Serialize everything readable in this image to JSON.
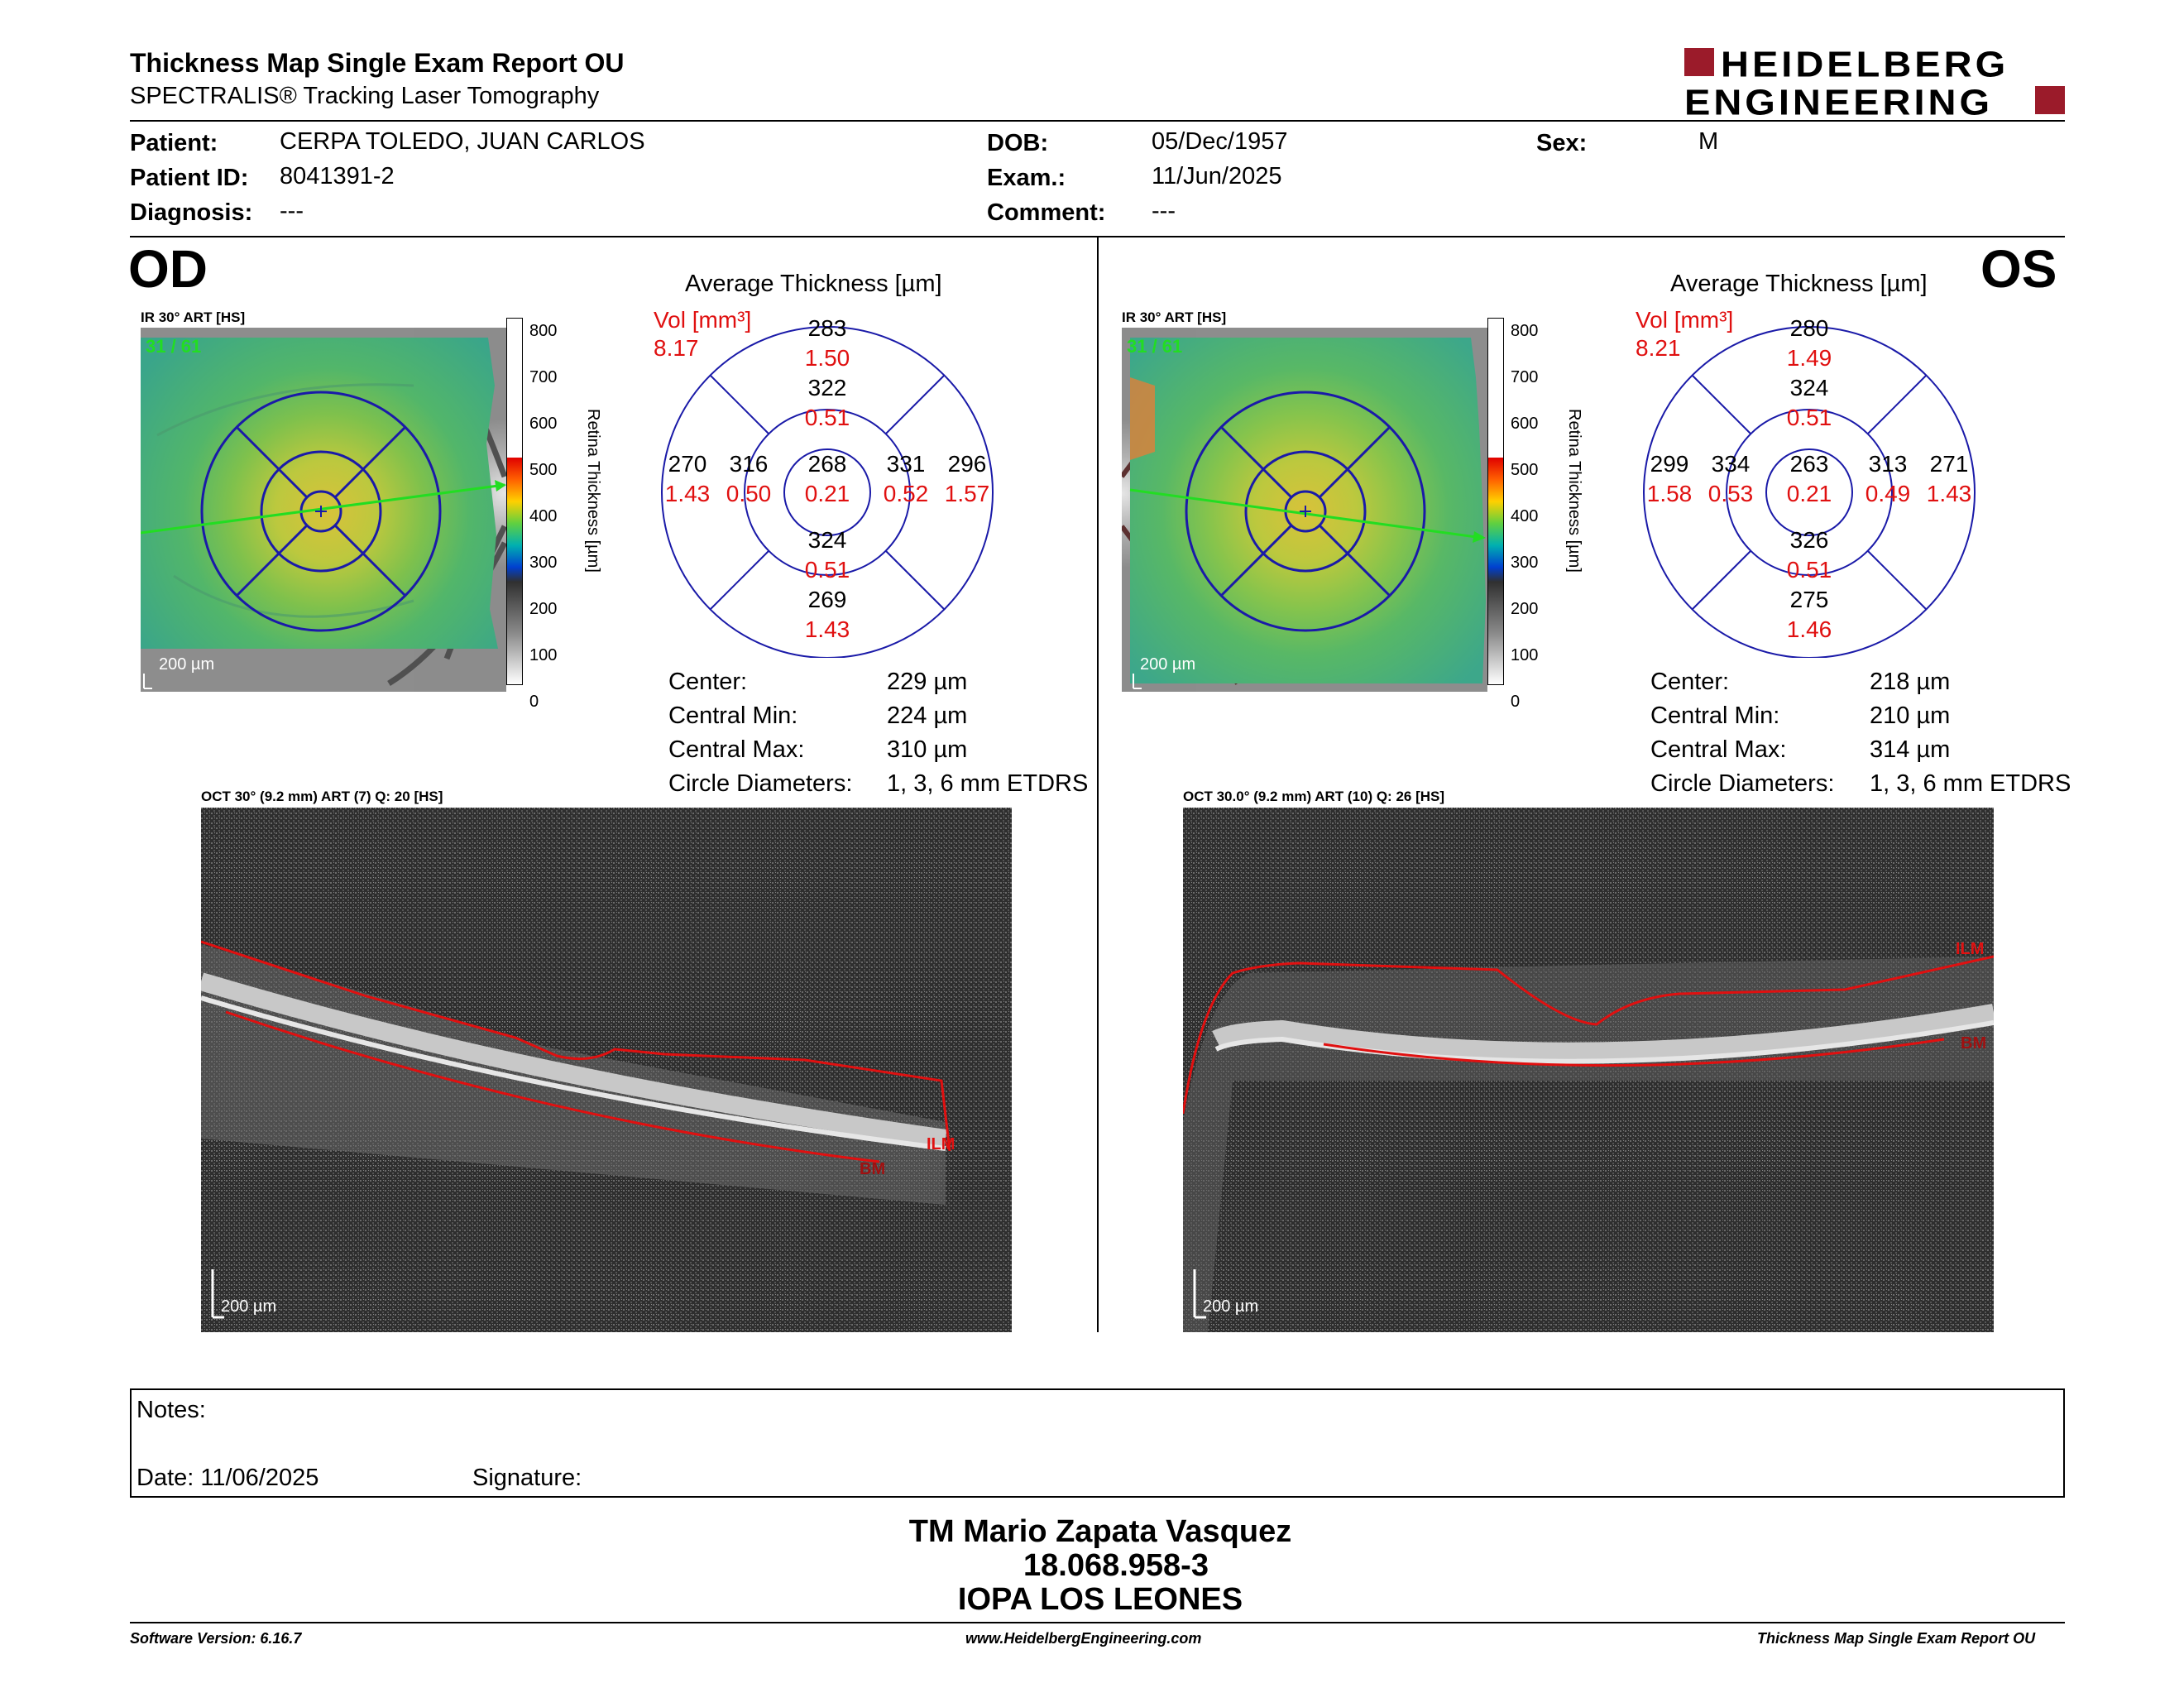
{
  "header": {
    "title": "Thickness Map Single Exam Report OU",
    "subtitle": "SPECTRALIS® Tracking Laser Tomography",
    "logo_line1": "HEIDELBERG",
    "logo_line2": "ENGINEERING",
    "brand_color": "#9b1b2a"
  },
  "patient": {
    "patient_label": "Patient:",
    "patient_value": "CERPA TOLEDO, JUAN CARLOS",
    "id_label": "Patient ID:",
    "id_value": "8041391-2",
    "diagnosis_label": "Diagnosis:",
    "diagnosis_value": "---",
    "dob_label": "DOB:",
    "dob_value": "05/Dec/1957",
    "exam_label": "Exam.:",
    "exam_value": "11/Jun/2025",
    "comment_label": "Comment:",
    "comment_value": "---",
    "sex_label": "Sex:",
    "sex_value": "M"
  },
  "od": {
    "eye_label": "OD",
    "ir_label": "IR 30° ART [HS]",
    "ir_counter": "31 / 61",
    "scale_label": "200 µm",
    "colorbar_ticks": [
      "800",
      "700",
      "600",
      "500",
      "400",
      "300",
      "200",
      "100",
      "0"
    ],
    "colorbar_title": "Retina Thickness [µm]",
    "avg_title": "Average Thickness [µm]",
    "vol_label": "Vol [mm³]",
    "vol_value": "8.17",
    "sectors": {
      "outer_top": [
        "283",
        "1.50"
      ],
      "inner_top": [
        "322",
        "0.51"
      ],
      "outer_left": [
        "270",
        "1.43"
      ],
      "inner_left": [
        "316",
        "0.50"
      ],
      "center": [
        "268",
        "0.21"
      ],
      "inner_right": [
        "331",
        "0.52"
      ],
      "outer_right": [
        "296",
        "1.57"
      ],
      "inner_bottom": [
        "324",
        "0.51"
      ],
      "outer_bottom": [
        "269",
        "1.43"
      ]
    },
    "stats": {
      "center_label": "Center:",
      "center_value": "229 µm",
      "min_label": "Central Min:",
      "min_value": "224 µm",
      "max_label": "Central Max:",
      "max_value": "310 µm",
      "diam_label": "Circle Diameters:",
      "diam_value": "1, 3, 6 mm ETDRS"
    },
    "oct_label": "OCT 30° (9.2 mm) ART (7) Q: 20 [HS]",
    "oct_ilm": "ILM",
    "oct_bm": "BM",
    "oct_scale": "200 µm"
  },
  "os": {
    "eye_label": "OS",
    "ir_label": "IR 30° ART [HS]",
    "ir_counter": "31 / 61",
    "scale_label": "200 µm",
    "colorbar_ticks": [
      "800",
      "700",
      "600",
      "500",
      "400",
      "300",
      "200",
      "100",
      "0"
    ],
    "colorbar_title": "Retina Thickness [µm]",
    "avg_title": "Average Thickness [µm]",
    "vol_label": "Vol [mm³]",
    "vol_value": "8.21",
    "sectors": {
      "outer_top": [
        "280",
        "1.49"
      ],
      "inner_top": [
        "324",
        "0.51"
      ],
      "outer_left": [
        "299",
        "1.58"
      ],
      "inner_left": [
        "334",
        "0.53"
      ],
      "center": [
        "263",
        "0.21"
      ],
      "inner_right": [
        "313",
        "0.49"
      ],
      "outer_right": [
        "271",
        "1.43"
      ],
      "inner_bottom": [
        "326",
        "0.51"
      ],
      "outer_bottom": [
        "275",
        "1.46"
      ]
    },
    "stats": {
      "center_label": "Center:",
      "center_value": "218 µm",
      "min_label": "Central Min:",
      "min_value": "210 µm",
      "max_label": "Central Max:",
      "max_value": "314 µm",
      "diam_label": "Circle Diameters:",
      "diam_value": "1, 3, 6 mm ETDRS"
    },
    "oct_label": "OCT 30.0° (9.2 mm) ART (10) Q: 26 [HS]",
    "oct_ilm": "ILM",
    "oct_bm": "BM",
    "oct_scale": "200 µm"
  },
  "notes": {
    "notes_label": "Notes:",
    "date_label": "Date: 11/06/2025",
    "signature_label": "Signature:"
  },
  "signer": {
    "name": "TM Mario Zapata Vasquez",
    "rut": "18.068.958-3",
    "org": "IOPA LOS LEONES"
  },
  "footer": {
    "software": "Software Version: 6.16.7",
    "website": "www.HeidelbergEngineering.com",
    "report": "Thickness Map Single Exam Report OU"
  },
  "colors": {
    "red_value": "#e01010",
    "grid_blue": "#1a1aa8",
    "scan_green": "#22dd22"
  }
}
